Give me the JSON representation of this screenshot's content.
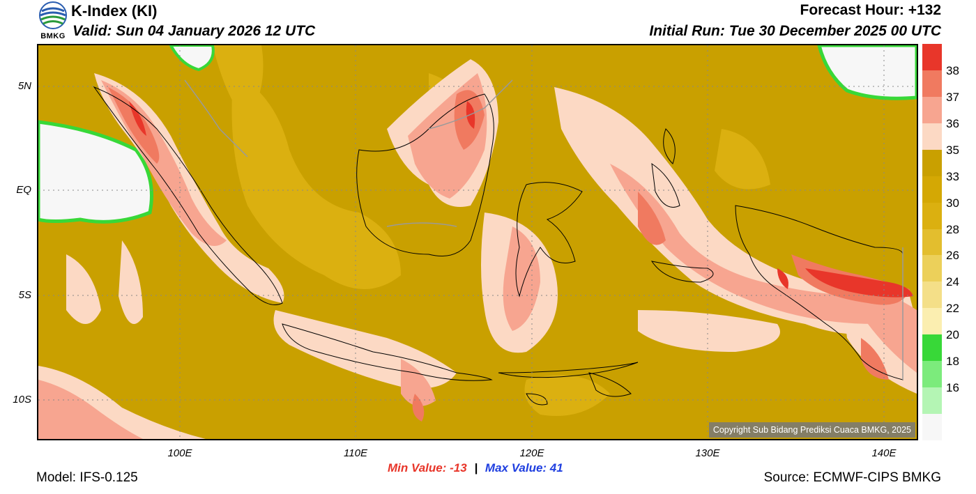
{
  "header": {
    "title": "K-Index (KI)",
    "valid": "Valid: Sun 04 January 2026 12 UTC",
    "forecast_hour": "Forecast Hour: +132",
    "initial_run": "Initial Run: Tue 30 December 2025 00 UTC",
    "logo_text": "BMKG"
  },
  "map": {
    "copyright": "Copyright Sub Bidang Prediksi Cuaca BMKG, 2025",
    "lat_labels": [
      "5N",
      "EQ",
      "5S",
      "10S"
    ],
    "lon_labels": [
      "100E",
      "110E",
      "120E",
      "130E",
      "140E"
    ]
  },
  "stats": {
    "min_label": "Min Value: -13",
    "separator": "|",
    "max_label": "Max Value:  41"
  },
  "footer": {
    "model": "Model: IFS-0.125",
    "source": "Source: ECMWF-CIPS BMKG"
  },
  "legend": {
    "labels": [
      "38",
      "37",
      "36",
      "35",
      "33",
      "30",
      "28",
      "26",
      "24",
      "22",
      "20",
      "18",
      "16"
    ],
    "colors": [
      "#e8362a",
      "#f07a60",
      "#f7a590",
      "#fcd9c4",
      "#c9a000",
      "#d4a804",
      "#dbb010",
      "#e3be2e",
      "#ecd05a",
      "#f4df88",
      "#fbeeb0",
      "#38d838",
      "#7ceb7c",
      "#b4f5b4",
      "#f7f7f7"
    ]
  }
}
